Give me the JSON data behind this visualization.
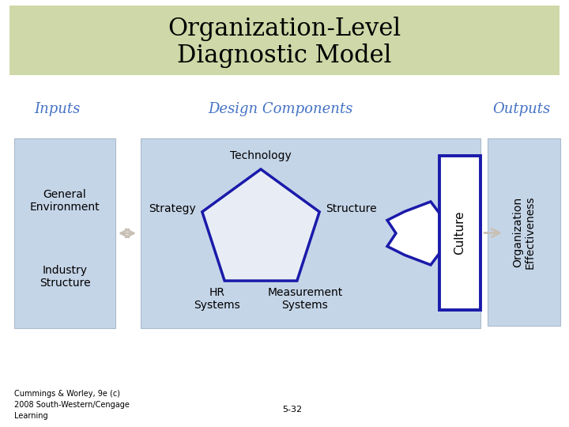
{
  "title_line1": "Organization-Level",
  "title_line2": "Diagnostic Model",
  "title_bg": "#ced8a8",
  "inputs_label": "Inputs",
  "outputs_label": "Outputs",
  "design_label": "Design Components",
  "label_color": "#4472c4",
  "inputs_box_color": "#c5d5e8",
  "design_box_color": "#c5d5e8",
  "outputs_box_color": "#c5d5e8",
  "pentagon_color": "#1a1aaa",
  "arrow_color": "#c8c0b4",
  "input_texts": [
    "General\nEnvironment",
    "Industry\nStructure"
  ],
  "design_labels": [
    "Technology",
    "Strategy",
    "Structure",
    "HR\nSystems",
    "Measurement\nSystems"
  ],
  "culture_text": "Culture",
  "output_text": "Organization\nEffectiveness",
  "footer_left": "Cummings & Worley, 9e (c)\n2008 South-Western/Cengage\nLearning",
  "footer_center": "5-32",
  "bg_color": "#ffffff",
  "title_fontsize": 22,
  "label_fontsize": 13,
  "body_fontsize": 10
}
